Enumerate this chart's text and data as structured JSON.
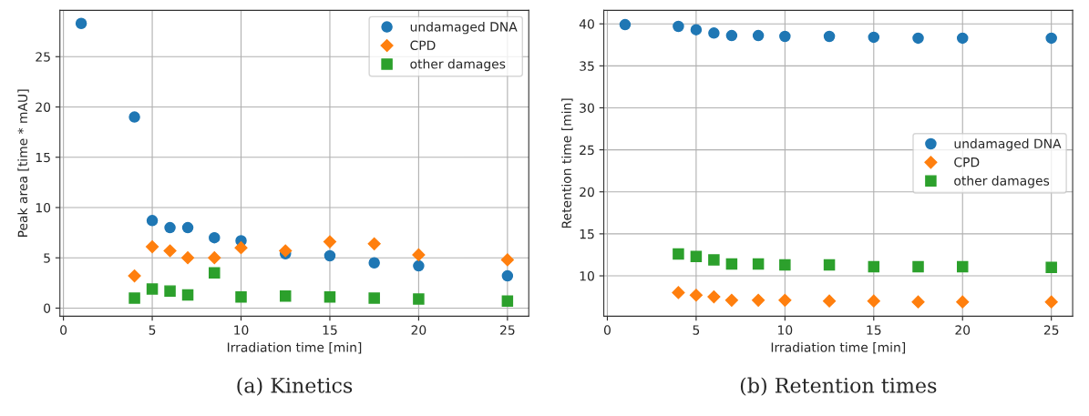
{
  "chart_data": [
    {
      "type": "scatter",
      "xlabel": "Irradiation time [min]",
      "ylabel": "Peak area [time * mAU]",
      "annotations": [
        "(a) Kinetics"
      ],
      "xlim": [
        -0.2,
        26.2
      ],
      "ylim": [
        -0.8,
        29.6
      ],
      "xticks": [
        0,
        5,
        10,
        15,
        20,
        25
      ],
      "yticks": [
        0,
        5,
        10,
        15,
        20,
        25
      ],
      "grid": true,
      "legend": "top right",
      "series": [
        {
          "name": "undamaged DNA",
          "color": "#1f77b4",
          "marker": "circle",
          "x": [
            1,
            4,
            5,
            6,
            7,
            8.5,
            10,
            12.5,
            15,
            17.5,
            20,
            25
          ],
          "values": [
            28.3,
            19.0,
            8.7,
            8.0,
            8.0,
            7.0,
            6.7,
            5.4,
            5.2,
            4.5,
            4.2,
            3.2
          ]
        },
        {
          "name": "CPD",
          "color": "#ff7f0e",
          "marker": "diamond",
          "x": [
            4,
            5,
            6,
            7,
            8.5,
            10,
            12.5,
            15,
            17.5,
            20,
            25
          ],
          "values": [
            3.2,
            6.1,
            5.7,
            5.0,
            5.0,
            6.0,
            5.7,
            6.6,
            6.4,
            5.3,
            4.8
          ]
        },
        {
          "name": "other damages",
          "color": "#2ca02c",
          "marker": "square",
          "x": [
            4,
            5,
            6,
            7,
            8.5,
            10,
            12.5,
            15,
            17.5,
            20,
            25
          ],
          "values": [
            1.0,
            1.9,
            1.7,
            1.3,
            3.5,
            1.1,
            1.2,
            1.1,
            1.0,
            0.9,
            0.7
          ]
        }
      ]
    },
    {
      "type": "scatter",
      "xlabel": "Irradiation time [min]",
      "ylabel": "Retention time [min]",
      "annotations": [
        "(b) Retention times"
      ],
      "xlim": [
        -0.2,
        26.2
      ],
      "ylim": [
        5.2,
        41.6
      ],
      "xticks": [
        0,
        5,
        10,
        15,
        20,
        25
      ],
      "yticks": [
        10,
        15,
        20,
        25,
        30,
        35,
        40
      ],
      "grid": true,
      "legend": "center right",
      "series": [
        {
          "name": "undamaged DNA",
          "color": "#1f77b4",
          "marker": "circle",
          "x": [
            1,
            4,
            5,
            6,
            7,
            8.5,
            10,
            12.5,
            15,
            17.5,
            20,
            25
          ],
          "values": [
            39.9,
            39.7,
            39.3,
            38.9,
            38.6,
            38.6,
            38.5,
            38.5,
            38.4,
            38.3,
            38.3,
            38.3
          ]
        },
        {
          "name": "CPD",
          "color": "#ff7f0e",
          "marker": "diamond",
          "x": [
            4,
            5,
            6,
            7,
            8.5,
            10,
            12.5,
            15,
            17.5,
            20,
            25
          ],
          "values": [
            8.0,
            7.7,
            7.5,
            7.1,
            7.1,
            7.1,
            7.0,
            7.0,
            6.9,
            6.9,
            6.9
          ]
        },
        {
          "name": "other damages",
          "color": "#2ca02c",
          "marker": "square",
          "x": [
            4,
            5,
            6,
            7,
            8.5,
            10,
            12.5,
            15,
            17.5,
            20,
            25
          ],
          "values": [
            12.6,
            12.3,
            11.9,
            11.4,
            11.4,
            11.3,
            11.3,
            11.1,
            11.1,
            11.1,
            11.0
          ]
        }
      ]
    }
  ]
}
